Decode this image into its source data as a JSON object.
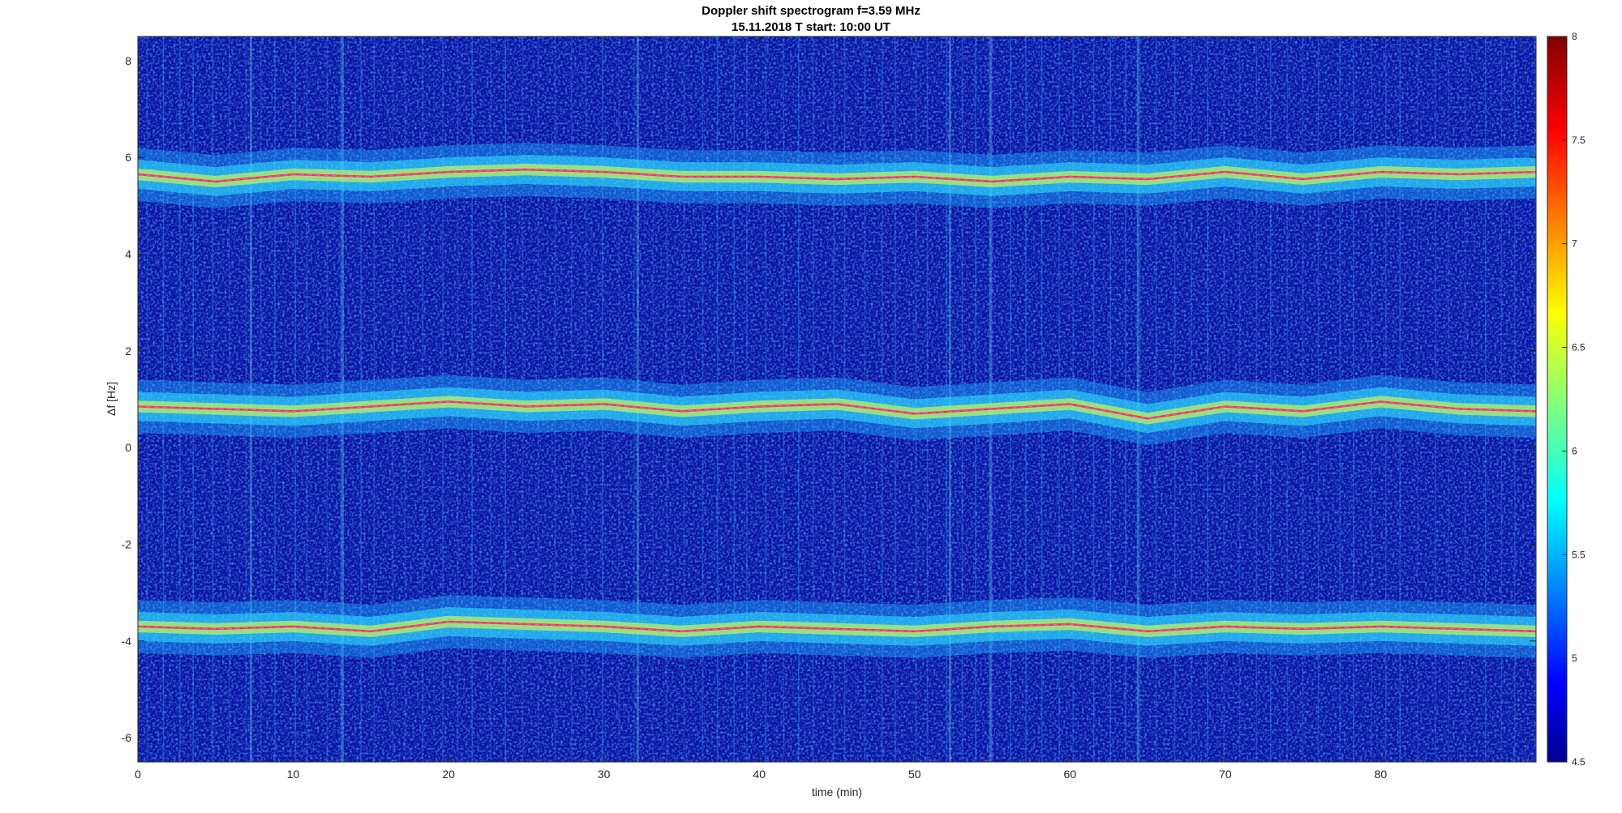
{
  "title": "Doppler shift spectrogram f=3.59 MHz",
  "subtitle": "15.11.2018    T start: 10:00 UT",
  "chart_data": {
    "type": "heatmap",
    "title": "Doppler shift spectrogram f=3.59 MHz",
    "subtitle": "15.11.2018    T start: 10:00 UT",
    "xlabel": "time (min)",
    "ylabel": "Δf [Hz]",
    "xlim": [
      0,
      90
    ],
    "ylim": [
      -6.5,
      8.5
    ],
    "xticks": [
      0,
      10,
      20,
      30,
      40,
      50,
      60,
      70,
      80
    ],
    "yticks": [
      -6,
      -4,
      -2,
      0,
      2,
      4,
      6,
      8
    ],
    "colorbar": {
      "colormap": "jet",
      "clim": [
        4.5,
        8
      ],
      "ticks": [
        "4.5",
        "5",
        "5.5",
        "6",
        "6.5",
        "7",
        "7.5",
        "8"
      ]
    },
    "series": [
      {
        "x": [
          0,
          5,
          10,
          15,
          20,
          25,
          30,
          35,
          40,
          45,
          50,
          55,
          60,
          65,
          70,
          75,
          80,
          85,
          90
        ],
        "y": [
          5.65,
          5.5,
          5.65,
          5.6,
          5.7,
          5.75,
          5.7,
          5.6,
          5.6,
          5.55,
          5.6,
          5.5,
          5.6,
          5.55,
          5.7,
          5.55,
          5.7,
          5.65,
          5.7
        ]
      },
      {
        "x": [
          0,
          5,
          10,
          15,
          20,
          25,
          30,
          35,
          40,
          45,
          50,
          55,
          60,
          65,
          70,
          75,
          80,
          85,
          90
        ],
        "y": [
          0.85,
          0.8,
          0.75,
          0.85,
          0.95,
          0.85,
          0.9,
          0.75,
          0.85,
          0.9,
          0.7,
          0.8,
          0.9,
          0.6,
          0.85,
          0.75,
          0.95,
          0.8,
          0.75
        ]
      },
      {
        "x": [
          0,
          5,
          10,
          15,
          20,
          25,
          30,
          35,
          40,
          45,
          50,
          55,
          60,
          65,
          70,
          75,
          80,
          85,
          90
        ],
        "y": [
          -3.7,
          -3.75,
          -3.7,
          -3.8,
          -3.6,
          -3.65,
          -3.7,
          -3.8,
          -3.7,
          -3.75,
          -3.8,
          -3.7,
          -3.65,
          -3.8,
          -3.7,
          -3.75,
          -3.7,
          -3.75,
          -3.8
        ]
      }
    ],
    "grid": false
  }
}
